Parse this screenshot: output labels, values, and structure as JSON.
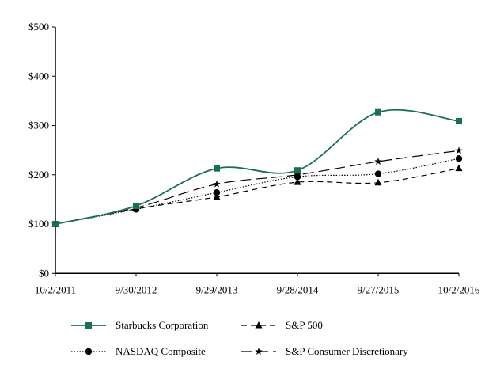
{
  "chart_data": {
    "type": "line",
    "categories": [
      "10/2/2011",
      "9/30/2012",
      "9/29/2013",
      "9/28/2014",
      "9/27/2015",
      "10/2/2016"
    ],
    "yticks": [
      "$0",
      "$100",
      "$200",
      "$300",
      "$400",
      "$500"
    ],
    "ylim": [
      0,
      500
    ],
    "grid": false,
    "legend_placement": "bottom",
    "series": [
      {
        "name": "Starbucks Corporation",
        "values": [
          100,
          137,
          213,
          209,
          327,
          309
        ],
        "color": "#1a7050",
        "marker": "square",
        "dash": "solid"
      },
      {
        "name": "S&P 500",
        "values": [
          100,
          131,
          155,
          185,
          184,
          213
        ],
        "color": "#000000",
        "marker": "triangle",
        "dash": "dashed"
      },
      {
        "name": "NASDAQ Composite",
        "values": [
          100,
          130,
          164,
          196,
          202,
          233
        ],
        "color": "#000000",
        "marker": "circle",
        "dash": "dotted"
      },
      {
        "name": "S&P Consumer Discretionary",
        "values": [
          100,
          133,
          181,
          200,
          227,
          249
        ],
        "color": "#000000",
        "marker": "star",
        "dash": "long-dash"
      }
    ]
  }
}
